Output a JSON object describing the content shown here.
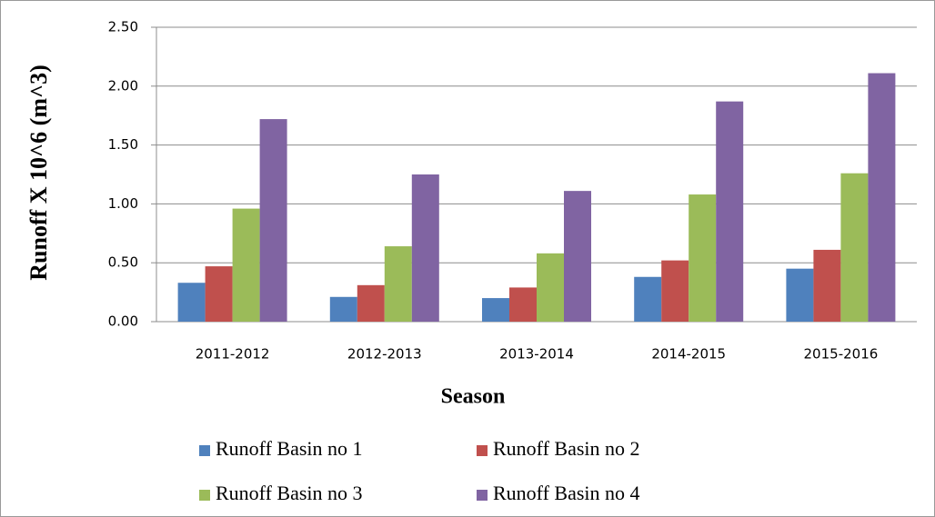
{
  "chart_data": {
    "type": "bar",
    "y_label": "Runoff X 10^6 (m^3)",
    "x_label": "Season",
    "categories": [
      "2011-2012",
      "2012-2013",
      "2013-2014",
      "2014-2015",
      "2015-2016"
    ],
    "series": [
      {
        "name": "Runoff Basin no 1",
        "color": "#4f81bd",
        "values": [
          0.33,
          0.21,
          0.2,
          0.38,
          0.45
        ]
      },
      {
        "name": "Runoff Basin no 2",
        "color": "#c0504d",
        "values": [
          0.47,
          0.31,
          0.29,
          0.52,
          0.61
        ]
      },
      {
        "name": "Runoff Basin no 3",
        "color": "#9bbb59",
        "values": [
          0.96,
          0.64,
          0.58,
          1.08,
          1.26
        ]
      },
      {
        "name": "Runoff Basin no 4",
        "color": "#8064a2",
        "values": [
          1.72,
          1.25,
          1.11,
          1.87,
          2.11
        ]
      }
    ],
    "ylim": [
      0,
      2.5
    ],
    "yticks": [
      {
        "value": 0,
        "label": "0.00"
      },
      {
        "value": 0.5,
        "label": "0.50"
      },
      {
        "value": 1,
        "label": "1.00"
      },
      {
        "value": 1.5,
        "label": "1.50"
      },
      {
        "value": 2,
        "label": "2.00"
      },
      {
        "value": 2.5,
        "label": "2.50"
      }
    ],
    "grid": true,
    "legend": "bottom"
  }
}
